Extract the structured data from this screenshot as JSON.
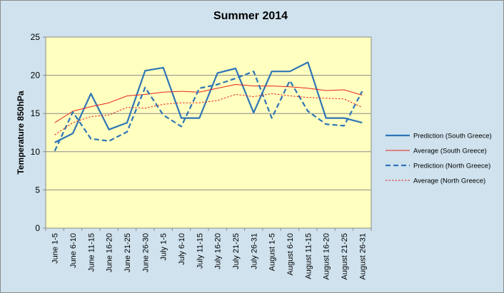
{
  "chart_data": {
    "type": "line",
    "title": "Summer 2014",
    "xlabel": "",
    "ylabel": "Temperature 850hPa",
    "ylim": [
      0,
      25
    ],
    "yticks": [
      0,
      5,
      10,
      15,
      20,
      25
    ],
    "grid": true,
    "legend_position": "right",
    "plot_background": "#ffffc0",
    "chart_background": "#cfe2ee",
    "categories": [
      "June 1-5",
      "June 6-10",
      "June 11-15",
      "June 16-20",
      "June 21-25",
      "June 26-30",
      "July 1-5",
      "July 6-10",
      "July 11-15",
      "July 16-20",
      "July 21-25",
      "July 26-31",
      "August 1-5",
      "August 6-10",
      "August 11-15",
      "August 16-20",
      "August 21-25",
      "August 26-31"
    ],
    "series": [
      {
        "name": "Prediction (South Greece)",
        "color": "#2e75b6",
        "style": "solid",
        "width": 2.2,
        "values": [
          11.2,
          12.4,
          17.6,
          12.9,
          13.8,
          20.6,
          21.0,
          14.4,
          14.4,
          20.3,
          20.9,
          15.1,
          20.5,
          20.5,
          21.7,
          14.4,
          14.4,
          13.8
        ]
      },
      {
        "name": "Average (South Greece)",
        "color": "#e8241a",
        "style": "solid",
        "width": 1,
        "values": [
          13.8,
          15.3,
          15.9,
          16.4,
          17.3,
          17.5,
          17.8,
          17.9,
          17.8,
          18.3,
          18.8,
          18.6,
          18.6,
          18.5,
          18.3,
          18.0,
          18.1,
          17.4
        ]
      },
      {
        "name": "Prediction (North Greece)",
        "color": "#2e75b6",
        "style": "dashed",
        "width": 2.2,
        "values": [
          10.1,
          15.2,
          11.7,
          11.4,
          12.6,
          18.4,
          14.8,
          13.3,
          18.3,
          18.8,
          19.6,
          20.5,
          14.4,
          19.3,
          15.3,
          13.6,
          13.4,
          17.9
        ]
      },
      {
        "name": "Average (North Greece)",
        "color": "#e8241a",
        "style": "dotted",
        "width": 1,
        "values": [
          12.2,
          13.8,
          14.6,
          14.8,
          15.8,
          15.7,
          16.2,
          16.4,
          16.4,
          16.7,
          17.5,
          17.2,
          17.6,
          17.3,
          17.1,
          17.0,
          16.9,
          15.8
        ]
      }
    ]
  }
}
